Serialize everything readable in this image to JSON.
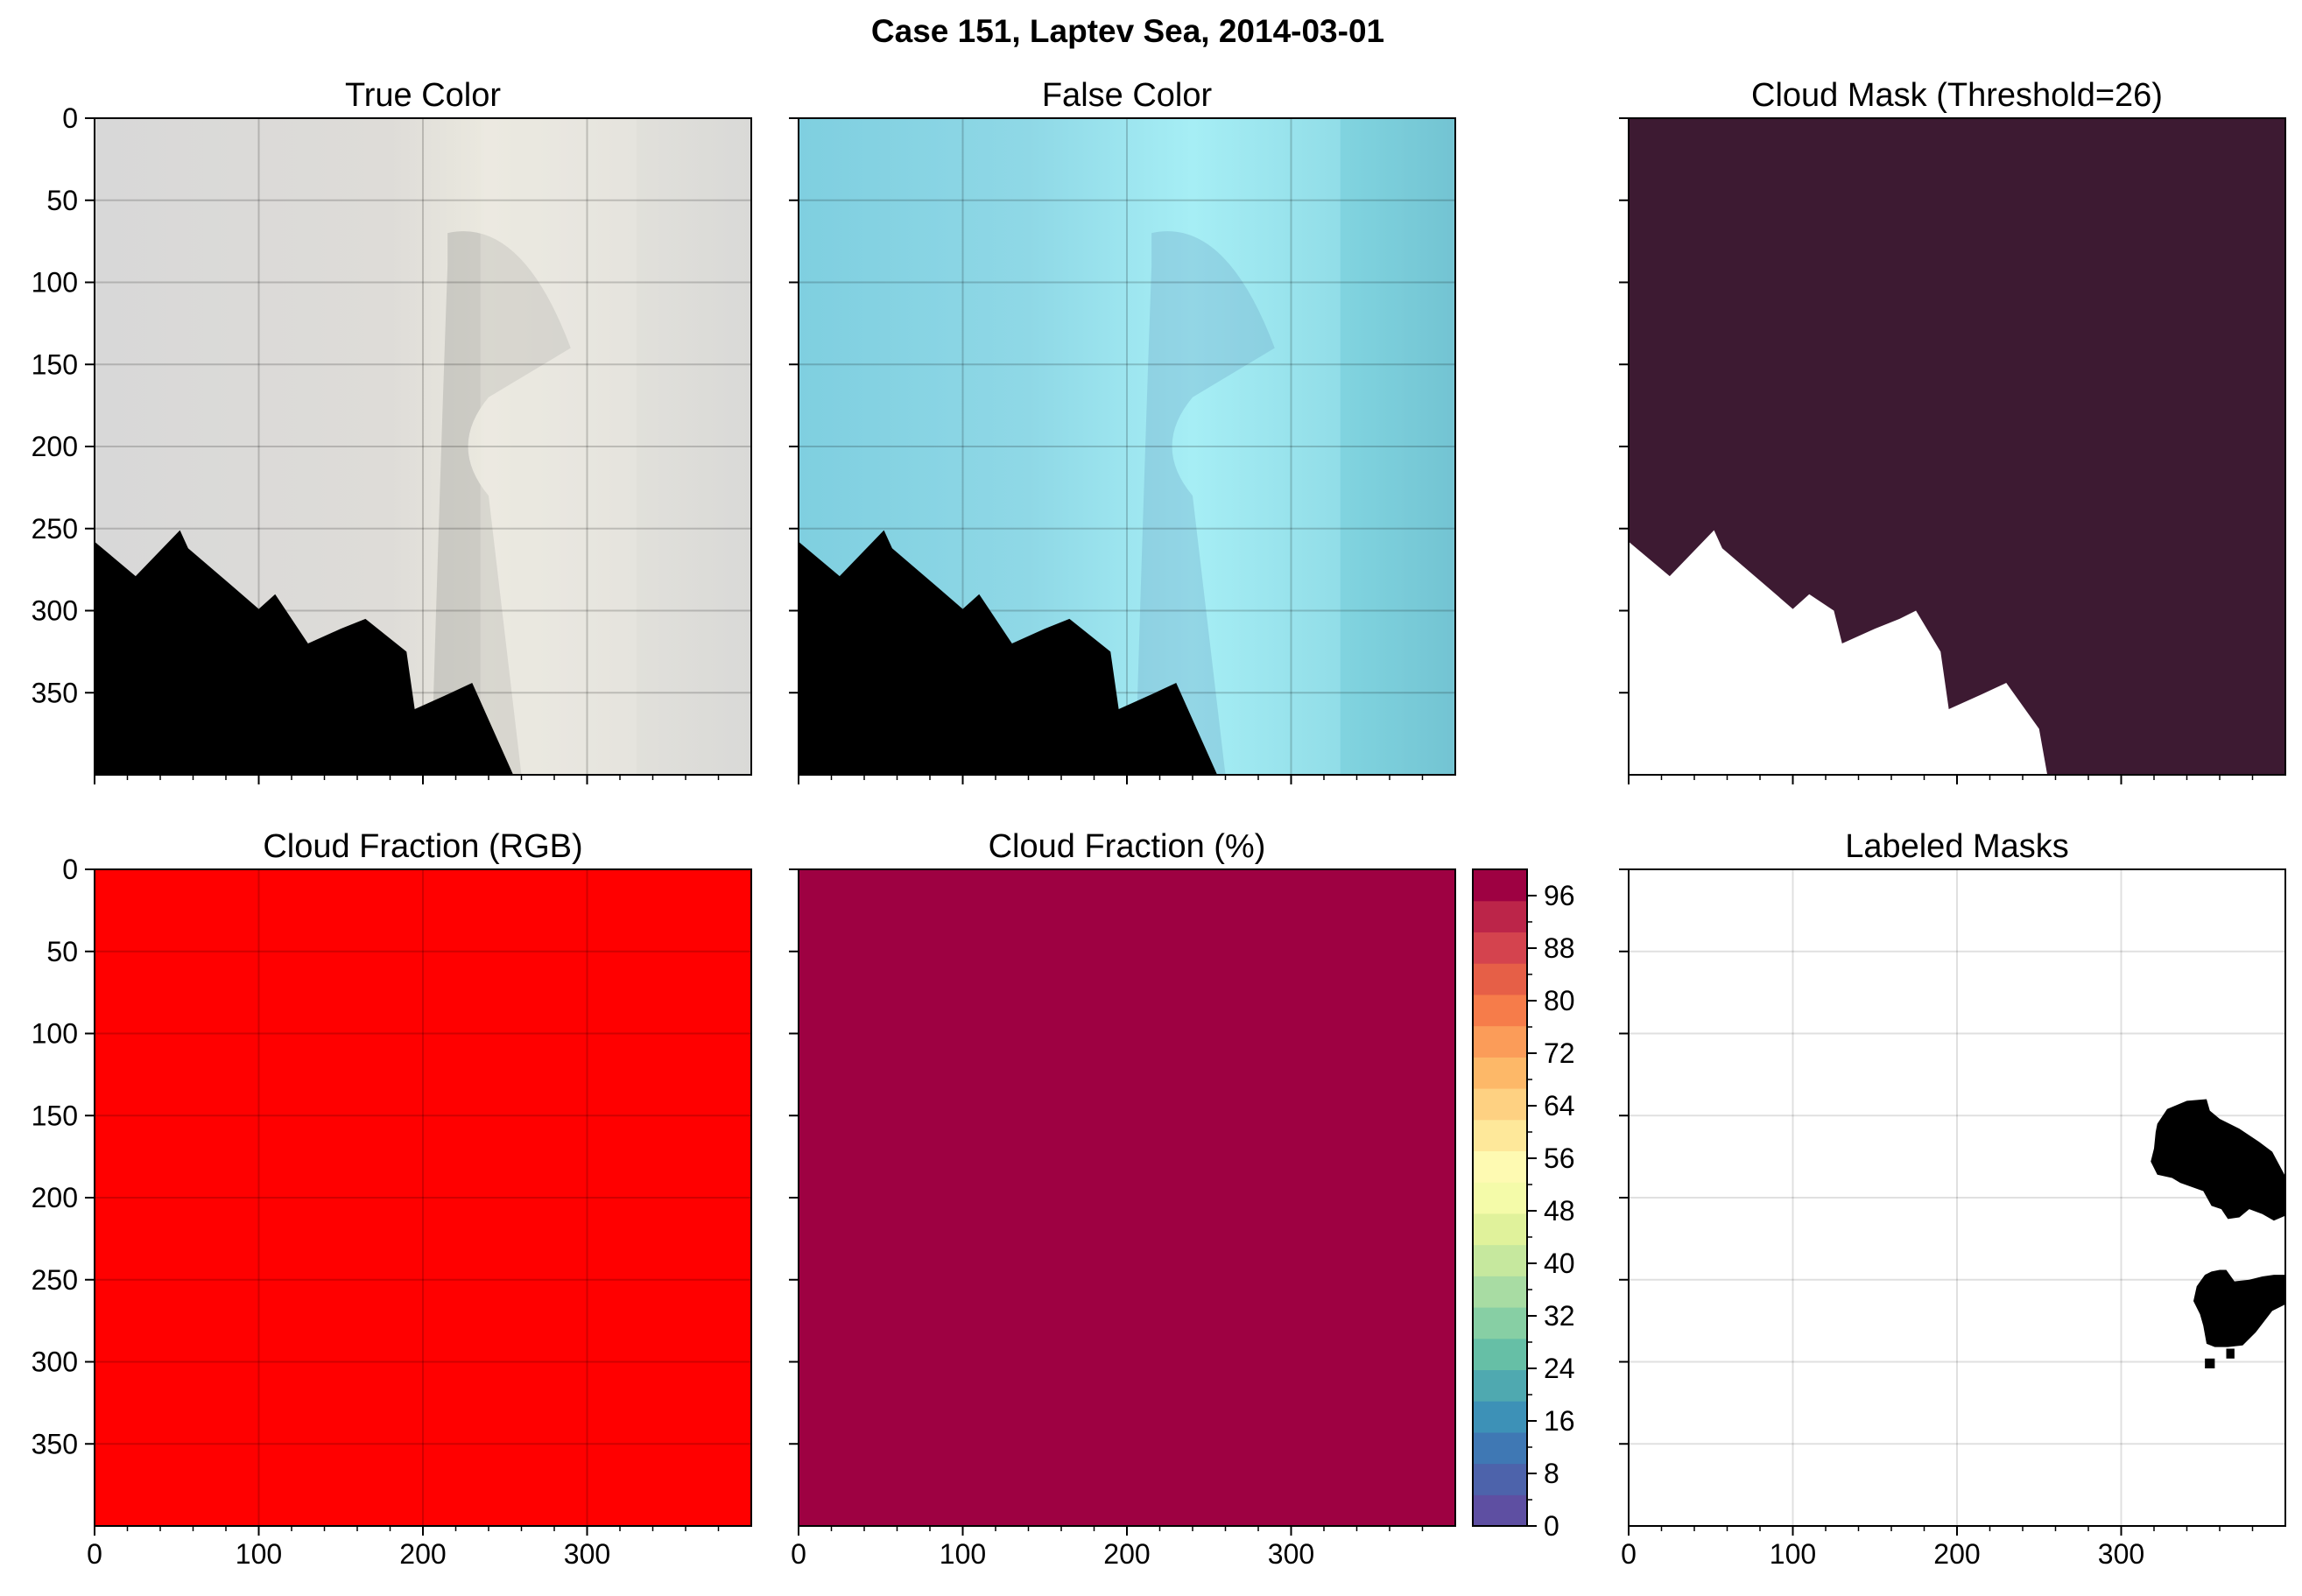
{
  "figure": {
    "suptitle": "Case 151, Laptev Sea, 2014-03-01"
  },
  "chart_data": [
    {
      "type": "heatmap",
      "panel": "true-color",
      "title": "True Color",
      "xlim": [
        0,
        400
      ],
      "ylim": [
        400,
        0
      ],
      "xticks": [
        0,
        100,
        200,
        300
      ],
      "yticks": [
        0,
        50,
        100,
        150,
        200,
        250,
        300,
        350
      ],
      "show_x_labels": false,
      "show_y_labels": true,
      "grid": true,
      "colors": {
        "image": "#dcdcd8",
        "haze": "#eeece4",
        "no_data": "#000000"
      },
      "no_data_boundary": [
        [
          0,
          258
        ],
        [
          25,
          279
        ],
        [
          52,
          251
        ],
        [
          57,
          262
        ],
        [
          85,
          286
        ],
        [
          100,
          299
        ],
        [
          110,
          290
        ],
        [
          130,
          320
        ],
        [
          150,
          311
        ],
        [
          165,
          305
        ],
        [
          190,
          325
        ],
        [
          195,
          360
        ],
        [
          215,
          351
        ],
        [
          230,
          344
        ],
        [
          255,
          400
        ]
      ]
    },
    {
      "type": "heatmap",
      "panel": "false-color",
      "title": "False Color",
      "xlim": [
        0,
        400
      ],
      "ylim": [
        400,
        0
      ],
      "xticks": [
        0,
        100,
        200,
        300
      ],
      "yticks": [
        0,
        50,
        100,
        150,
        200,
        250,
        300,
        350
      ],
      "show_x_labels": false,
      "show_y_labels": false,
      "grid": true,
      "colors": {
        "image": "#8fd9e6",
        "bright": "#b6f3f8",
        "no_data": "#000000"
      },
      "no_data_boundary": [
        [
          0,
          258
        ],
        [
          25,
          279
        ],
        [
          52,
          251
        ],
        [
          57,
          262
        ],
        [
          85,
          286
        ],
        [
          100,
          299
        ],
        [
          110,
          290
        ],
        [
          130,
          320
        ],
        [
          150,
          311
        ],
        [
          165,
          305
        ],
        [
          190,
          325
        ],
        [
          195,
          360
        ],
        [
          215,
          351
        ],
        [
          230,
          344
        ],
        [
          255,
          400
        ]
      ]
    },
    {
      "type": "heatmap",
      "panel": "cloud-mask",
      "title": "Cloud Mask (Threshold=26)",
      "xlim": [
        0,
        400
      ],
      "ylim": [
        400,
        0
      ],
      "xticks": [
        0,
        100,
        200,
        300
      ],
      "yticks": [
        0,
        50,
        100,
        150,
        200,
        250,
        300,
        350
      ],
      "show_x_labels": false,
      "show_y_labels": false,
      "grid": false,
      "colors": {
        "cloud": "#3d1a32",
        "clear": "#ffffff"
      },
      "no_data_boundary": [
        [
          0,
          258
        ],
        [
          25,
          279
        ],
        [
          52,
          251
        ],
        [
          57,
          262
        ],
        [
          85,
          286
        ],
        [
          100,
          299
        ],
        [
          110,
          290
        ],
        [
          125,
          300
        ],
        [
          130,
          320
        ],
        [
          150,
          311
        ],
        [
          165,
          305
        ],
        [
          175,
          300
        ],
        [
          190,
          325
        ],
        [
          195,
          360
        ],
        [
          215,
          351
        ],
        [
          230,
          344
        ],
        [
          250,
          372
        ],
        [
          255,
          400
        ]
      ]
    },
    {
      "type": "heatmap",
      "panel": "cloud-fraction-rgb",
      "title": "Cloud Fraction (RGB)",
      "xlim": [
        0,
        400
      ],
      "ylim": [
        400,
        0
      ],
      "xticks": [
        0,
        100,
        200,
        300
      ],
      "yticks": [
        0,
        50,
        100,
        150,
        200,
        250,
        300,
        350
      ],
      "show_x_labels": true,
      "show_y_labels": true,
      "grid": true,
      "colors": {
        "fill": "#ff0000"
      }
    },
    {
      "type": "heatmap",
      "panel": "cloud-fraction-pct",
      "title": "Cloud Fraction (%)",
      "xlim": [
        0,
        400
      ],
      "ylim": [
        400,
        0
      ],
      "xticks": [
        0,
        100,
        200,
        300
      ],
      "yticks": [
        0,
        50,
        100,
        150,
        200,
        250,
        300,
        350
      ],
      "show_x_labels": true,
      "show_y_labels": false,
      "grid": false,
      "value": 100,
      "colors": {
        "fill": "#9e0142"
      },
      "colorbar": {
        "min": 0,
        "max": 100,
        "step": 4,
        "tick_labels": [
          "0",
          "8",
          "16",
          "24",
          "32",
          "40",
          "48",
          "56",
          "64",
          "72",
          "80",
          "88",
          "96"
        ],
        "tick_values": [
          0,
          8,
          16,
          24,
          32,
          40,
          48,
          56,
          64,
          72,
          80,
          88,
          96
        ],
        "colormap": [
          "#5e4fa2",
          "#4d63ab",
          "#3f78b4",
          "#3d91b7",
          "#4fa9b0",
          "#66bfa6",
          "#87cfa4",
          "#a8dca3",
          "#c6e89e",
          "#e0f29b",
          "#f4fba9",
          "#fefab2",
          "#fee89a",
          "#fed182",
          "#fdb868",
          "#fb9c59",
          "#f67c4a",
          "#e65f47",
          "#d4434e",
          "#bc2549",
          "#9e0142"
        ]
      },
      "data_labels": []
    },
    {
      "type": "heatmap",
      "panel": "labeled-masks",
      "title": "Labeled Masks",
      "xlim": [
        0,
        400
      ],
      "ylim": [
        400,
        0
      ],
      "xticks": [
        0,
        100,
        200,
        300
      ],
      "yticks": [
        0,
        50,
        100,
        150,
        200,
        250,
        300,
        350
      ],
      "show_x_labels": true,
      "show_y_labels": false,
      "grid": true,
      "colors": {
        "background": "#ffffff",
        "objects": "#000000"
      },
      "objects": [
        [
          [
            322,
            155
          ],
          [
            328,
            146
          ],
          [
            340,
            141
          ],
          [
            352,
            140
          ],
          [
            354,
            147
          ],
          [
            360,
            152
          ],
          [
            372,
            158
          ],
          [
            384,
            166
          ],
          [
            392,
            172
          ],
          [
            400,
            187
          ],
          [
            400,
            211
          ],
          [
            393,
            214
          ],
          [
            386,
            210
          ],
          [
            378,
            207
          ],
          [
            372,
            212
          ],
          [
            365,
            213
          ],
          [
            361,
            207
          ],
          [
            355,
            205
          ],
          [
            350,
            196
          ],
          [
            336,
            191
          ],
          [
            331,
            188
          ],
          [
            322,
            186
          ],
          [
            318,
            178
          ],
          [
            320,
            170
          ],
          [
            321,
            160
          ]
        ],
        [
          [
            346,
            254
          ],
          [
            351,
            247
          ],
          [
            355,
            245
          ],
          [
            360,
            244
          ],
          [
            364,
            244
          ],
          [
            369,
            251
          ],
          [
            378,
            250
          ],
          [
            386,
            248
          ],
          [
            393,
            247
          ],
          [
            400,
            247
          ],
          [
            400,
            265
          ],
          [
            392,
            269
          ],
          [
            382,
            282
          ],
          [
            374,
            290
          ],
          [
            365,
            291
          ],
          [
            357,
            291
          ],
          [
            352,
            289
          ],
          [
            350,
            278
          ],
          [
            348,
            271
          ],
          [
            344,
            263
          ]
        ],
        [
          [
            351,
            298
          ],
          [
            357,
            298
          ],
          [
            357,
            304
          ],
          [
            351,
            304
          ]
        ],
        [
          [
            364,
            292
          ],
          [
            369,
            292
          ],
          [
            369,
            298
          ],
          [
            364,
            298
          ]
        ]
      ]
    }
  ]
}
